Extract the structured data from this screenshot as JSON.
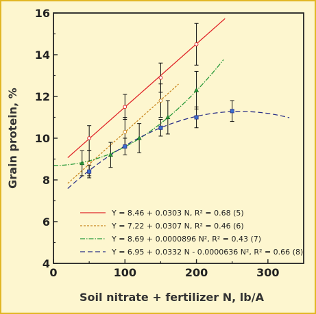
{
  "chart_data": {
    "type": "line",
    "xlabel": "Soil nitrate + fertilizer N, lb/A",
    "ylabel": "Grain protein, %",
    "xlim": [
      0,
      350
    ],
    "ylim": [
      4,
      16
    ],
    "xticks": [
      "0",
      "100",
      "200",
      "300"
    ],
    "xtick_values": [
      0,
      100,
      200,
      300
    ],
    "yticks": [
      "4",
      "6",
      "8",
      "10",
      "12",
      "14",
      "16"
    ],
    "ytick_values": [
      4,
      6,
      8,
      10,
      12,
      14,
      16
    ],
    "grid": false,
    "legend_position": "bottom-right",
    "series": [
      {
        "name": "(5)",
        "legend": "Y = 8.46 + 0.0303 N, R² = 0.68 (5)",
        "color": "#e0262a",
        "dash": "",
        "marker": "circle",
        "curve": {
          "c0": 8.46,
          "c1": 0.0303,
          "c2": 0,
          "xmin": 20,
          "xmax": 240
        },
        "x": [
          50,
          100,
          150,
          200
        ],
        "y": [
          10.0,
          11.5,
          12.9,
          14.5
        ],
        "err": [
          0.6,
          0.6,
          0.7,
          1.0
        ]
      },
      {
        "name": "(6)",
        "legend": "Y = 7.22 + 0.0307 N, R² = 0.46 (6)",
        "color": "#c8861e",
        "dash": "3,2",
        "marker": "circle",
        "curve": {
          "c0": 7.22,
          "c1": 0.0307,
          "c2": 0,
          "xmin": 20,
          "xmax": 175
        },
        "x": [
          50,
          100,
          150
        ],
        "y": [
          8.8,
          10.3,
          11.8
        ],
        "err": [
          0.6,
          0.7,
          0.8
        ]
      },
      {
        "name": "(7)",
        "legend": "Y = 8.69 + 0.0000896 N², R² = 0.43 (7)",
        "color": "#2a9a3a",
        "dash": "7,2,1.5,2",
        "marker": "triangle",
        "curve": {
          "c0": 8.69,
          "c1": 0,
          "c2": 8.96e-05,
          "xmin": 0,
          "xmax": 238
        },
        "x": [
          40,
          80,
          120,
          160,
          200
        ],
        "y": [
          8.8,
          9.2,
          10.0,
          11.0,
          12.3
        ],
        "err": [
          0.6,
          0.6,
          0.7,
          0.8,
          0.9
        ]
      },
      {
        "name": "(8)",
        "legend": "Y = 6.95 + 0.0332 N - 0.0000636 N², R² = 0.66 (8)",
        "color": "#2a2f88",
        "dash": "7,4",
        "marker": "square",
        "curve": {
          "c0": 6.95,
          "c1": 0.0332,
          "c2": -6.36e-05,
          "xmin": 20,
          "xmax": 330
        },
        "x": [
          50,
          100,
          150,
          200,
          250
        ],
        "y": [
          8.4,
          9.6,
          10.5,
          11.0,
          11.3
        ],
        "err": [
          0.3,
          0.4,
          0.4,
          0.5,
          0.5
        ]
      }
    ]
  }
}
